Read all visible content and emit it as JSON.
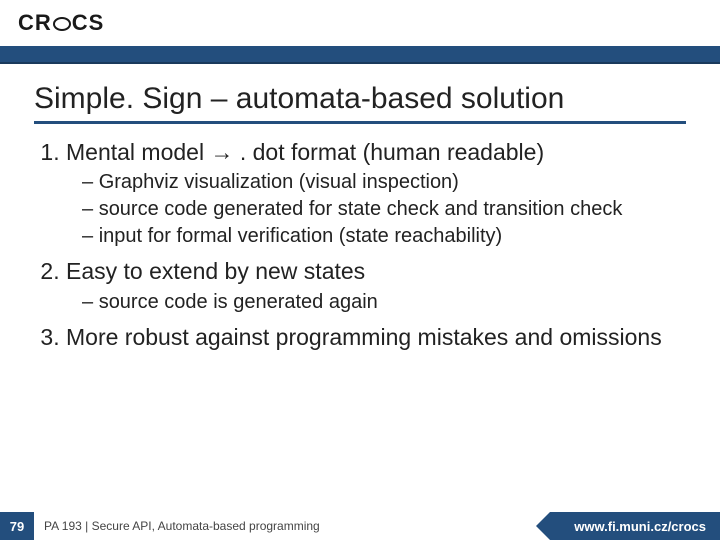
{
  "colors": {
    "brand_blue": "#234e7d",
    "text": "#222222",
    "background": "#ffffff"
  },
  "logo": {
    "pre": "CR",
    "post": "CS"
  },
  "title": "Simple. Sign – automata-based solution",
  "items": [
    {
      "text": "Mental model → . dot format (human readable)",
      "sub": [
        "Graphviz visualization (visual inspection)",
        "source code generated for state check and transition check",
        "input for formal verification (state reachability)"
      ]
    },
    {
      "text": "Easy to extend by new states",
      "sub": [
        "source code is generated again"
      ]
    },
    {
      "text": "More robust against programming mistakes and omissions",
      "sub": []
    }
  ],
  "footer": {
    "page": "79",
    "text": "PA 193 | Secure API, Automata-based programming",
    "url": "www.fi.muni.cz/crocs"
  },
  "typography": {
    "title_fontsize": 30,
    "body_fontsize": 23,
    "sub_fontsize": 20,
    "footer_fontsize": 12
  }
}
